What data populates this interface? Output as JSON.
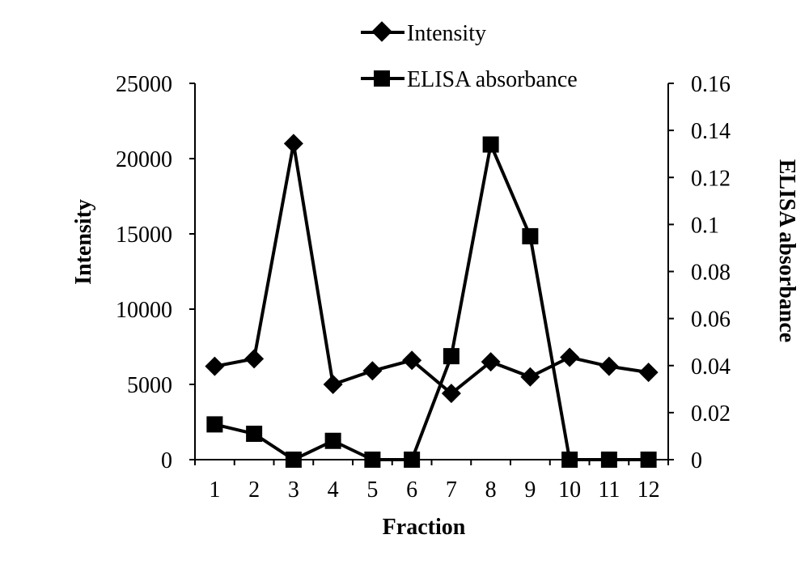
{
  "chart_data": {
    "type": "line",
    "title": "",
    "xlabel": "Fraction",
    "ylabel": "Intensity",
    "y2label": "ELISA absorbance",
    "categories": [
      "1",
      "2",
      "3",
      "4",
      "5",
      "6",
      "7",
      "8",
      "9",
      "10",
      "11",
      "12"
    ],
    "ylim": [
      0,
      25000
    ],
    "y_ticks": [
      "0",
      "5000",
      "10000",
      "15000",
      "20000",
      "25000"
    ],
    "y2lim": [
      0,
      0.16
    ],
    "y2_ticks": [
      "0",
      "0.02",
      "0.04",
      "0.06",
      "0.08",
      "0.1",
      "0.12",
      "0.14",
      "0.16"
    ],
    "grid": false,
    "legend_position": "top-center",
    "series": [
      {
        "name": "Intensity",
        "axis": "left",
        "marker": "diamond",
        "color": "#000000",
        "values": [
          6200,
          6700,
          21000,
          5000,
          5900,
          6600,
          4400,
          6500,
          5500,
          6800,
          6200,
          5800
        ]
      },
      {
        "name": "ELISA absorbance",
        "axis": "right",
        "marker": "square",
        "color": "#000000",
        "values": [
          0.015,
          0.011,
          0.0,
          0.008,
          0.0,
          0.0,
          0.044,
          0.134,
          0.095,
          0.0,
          0.0,
          0.0
        ]
      }
    ]
  }
}
